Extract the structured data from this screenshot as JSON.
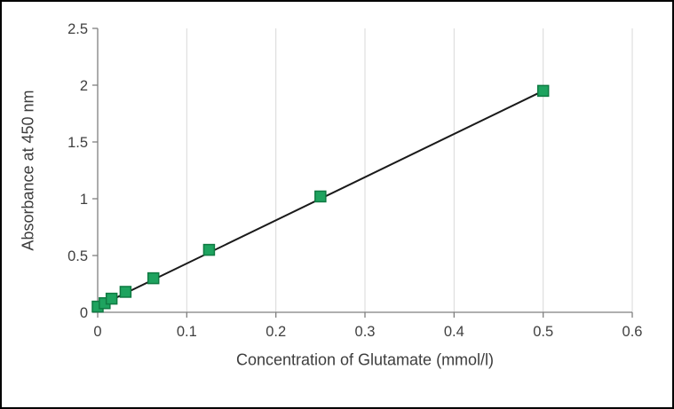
{
  "chart_data": {
    "type": "scatter",
    "title": "",
    "xlabel": "Concentration of Glutamate (mmol/l)",
    "ylabel": "Absorbance at 450 nm",
    "xlim": [
      0,
      0.6
    ],
    "ylim": [
      0,
      2.5
    ],
    "x_ticks": {
      "values": [
        0,
        0.1,
        0.2,
        0.3,
        0.4,
        0.5,
        0.6
      ],
      "labels": [
        "0",
        "0.1",
        "0.2",
        "0.3",
        "0.4",
        "0.5",
        "0.6"
      ]
    },
    "y_ticks": {
      "values": [
        0,
        0.5,
        1,
        1.5,
        2,
        2.5
      ],
      "labels": [
        "0",
        "0.5",
        "1",
        "1.5",
        "2",
        "2.5"
      ]
    },
    "points": [
      {
        "x": 0,
        "y": 0.05
      },
      {
        "x": 0.0078,
        "y": 0.08
      },
      {
        "x": 0.0156,
        "y": 0.12
      },
      {
        "x": 0.0313,
        "y": 0.18
      },
      {
        "x": 0.0625,
        "y": 0.3
      },
      {
        "x": 0.125,
        "y": 0.55
      },
      {
        "x": 0.25,
        "y": 1.02
      },
      {
        "x": 0.5,
        "y": 1.95
      }
    ],
    "marker": {
      "shape": "square",
      "size": 12,
      "fill": "#1ea35f",
      "stroke": "#0f7a42"
    },
    "trendline": {
      "type": "linear",
      "slope": 3.8,
      "intercept": 0.05,
      "x_range": [
        0,
        0.503
      ],
      "color": "#1a1a1a",
      "width": 2
    },
    "grid": {
      "vertical": true,
      "horizontal": false,
      "color": "#d9d9d9"
    },
    "style": {
      "axis_color": "#7f7f7f",
      "tick_label_color": "#404040",
      "axis_title_color": "#3d3d3d",
      "frame_border_color": "#000000",
      "background": "#ffffff"
    },
    "legend": {
      "visible": false
    }
  }
}
